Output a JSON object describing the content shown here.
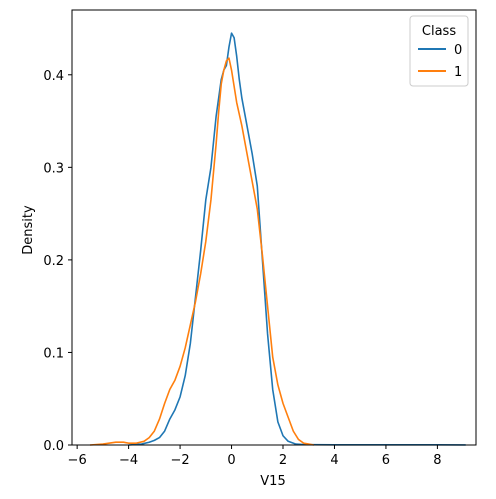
{
  "chart_data": {
    "type": "line",
    "xlabel": "V15",
    "ylabel": "Density",
    "xlim": [
      -6.2,
      9.5
    ],
    "ylim": [
      0,
      0.47
    ],
    "xticks": [
      -6,
      -4,
      -2,
      0,
      2,
      4,
      6,
      8
    ],
    "xtick_labels": [
      "−6",
      "−4",
      "−2",
      "0",
      "2",
      "4",
      "6",
      "8"
    ],
    "yticks": [
      0.0,
      0.1,
      0.2,
      0.3,
      0.4
    ],
    "ytick_labels": [
      "0.0",
      "0.1",
      "0.2",
      "0.3",
      "0.4"
    ],
    "grid": false,
    "legend": {
      "title": "Class",
      "placement": "top-right"
    },
    "series": [
      {
        "name": "0",
        "color": "#1f77b4",
        "x": [
          -4.0,
          -3.5,
          -3.2,
          -3.0,
          -2.8,
          -2.6,
          -2.4,
          -2.2,
          -2.0,
          -1.8,
          -1.6,
          -1.4,
          -1.2,
          -1.0,
          -0.8,
          -0.6,
          -0.4,
          -0.3,
          -0.2,
          -0.1,
          0.0,
          0.1,
          0.2,
          0.3,
          0.4,
          0.6,
          0.8,
          1.0,
          1.2,
          1.4,
          1.6,
          1.8,
          2.0,
          2.2,
          2.5,
          2.8,
          3.2,
          4.0,
          5.0,
          6.0,
          7.0,
          8.0,
          9.1
        ],
        "values": [
          0.0,
          0.001,
          0.003,
          0.005,
          0.008,
          0.015,
          0.028,
          0.038,
          0.052,
          0.075,
          0.11,
          0.16,
          0.21,
          0.265,
          0.3,
          0.355,
          0.395,
          0.405,
          0.41,
          0.43,
          0.445,
          0.44,
          0.42,
          0.395,
          0.375,
          0.345,
          0.315,
          0.28,
          0.2,
          0.12,
          0.06,
          0.025,
          0.01,
          0.004,
          0.001,
          0.0005,
          0.0003,
          0.0002,
          0.0002,
          0.0002,
          0.0002,
          0.0002,
          0.0001
        ]
      },
      {
        "name": "1",
        "color": "#ff7f0e",
        "x": [
          -5.5,
          -5.0,
          -4.5,
          -4.2,
          -4.0,
          -3.7,
          -3.4,
          -3.2,
          -3.0,
          -2.8,
          -2.6,
          -2.4,
          -2.2,
          -2.0,
          -1.8,
          -1.6,
          -1.4,
          -1.2,
          -1.0,
          -0.8,
          -0.6,
          -0.5,
          -0.4,
          -0.3,
          -0.2,
          -0.1,
          0.0,
          0.2,
          0.4,
          0.6,
          0.8,
          1.0,
          1.2,
          1.4,
          1.6,
          1.8,
          2.0,
          2.2,
          2.4,
          2.6,
          2.8,
          3.0,
          3.2
        ],
        "values": [
          0.0,
          0.001,
          0.003,
          0.003,
          0.002,
          0.002,
          0.004,
          0.008,
          0.015,
          0.028,
          0.045,
          0.06,
          0.07,
          0.085,
          0.105,
          0.13,
          0.155,
          0.185,
          0.22,
          0.265,
          0.325,
          0.36,
          0.39,
          0.405,
          0.415,
          0.418,
          0.405,
          0.37,
          0.345,
          0.315,
          0.285,
          0.255,
          0.205,
          0.15,
          0.095,
          0.065,
          0.045,
          0.03,
          0.015,
          0.006,
          0.002,
          0.001,
          0.0
        ]
      }
    ]
  }
}
